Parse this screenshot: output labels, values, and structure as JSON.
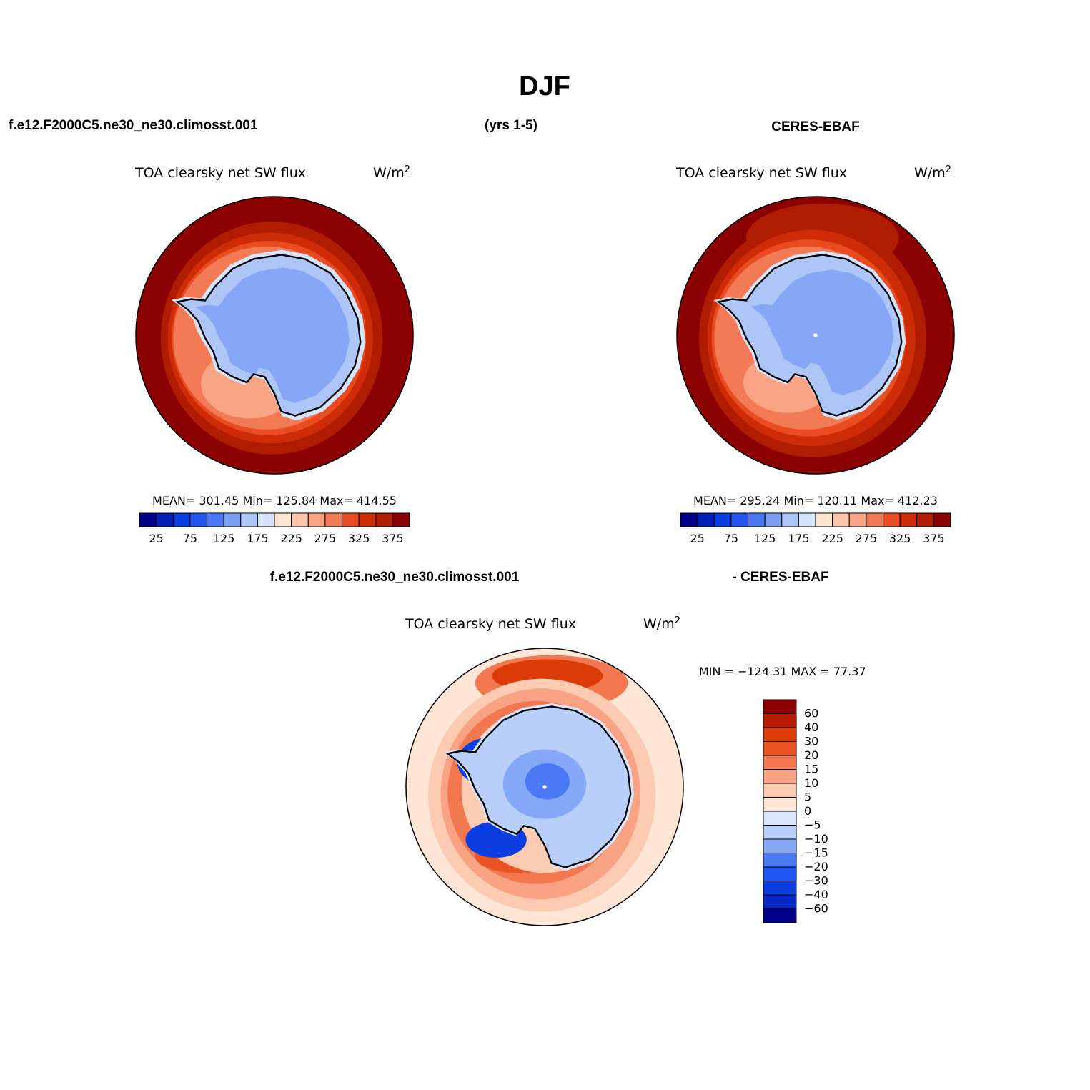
{
  "figure": {
    "title": "DJF",
    "top_left_label": "f.e12.F2000C5.ne30_ne30.climosst.001",
    "top_middle_label": "(yrs 1-5)",
    "top_right_label": "CERES-EBAF",
    "bottom_left_label": "f.e12.F2000C5.ne30_ne30.climosst.001",
    "bottom_right_label": "- CERES-EBAF"
  },
  "colors": {
    "seq": [
      "#00008b",
      "#0020b8",
      "#0a3ee0",
      "#2455f0",
      "#4a78f5",
      "#7a9ff5",
      "#adc6f7",
      "#d5e4fb",
      "#ffe4d0",
      "#fcc5ac",
      "#f9a485",
      "#f27b56",
      "#e84c20",
      "#ce2c06",
      "#b01c00",
      "#8b0000"
    ],
    "diff": [
      "#00008b",
      "#0a27c8",
      "#0a3ee0",
      "#1f55f2",
      "#4b78f5",
      "#86a8f8",
      "#b8cff9",
      "#d9e7fc",
      "#ffe6d6",
      "#fdcbb2",
      "#f9a384",
      "#f3784f",
      "#ea5423",
      "#db3c08",
      "#b81c00",
      "#8b0000"
    ],
    "ocean_high": "#8b0000",
    "continent_interior": "#86a6f6",
    "coast_line": "#000000"
  },
  "chart_data": [
    {
      "type": "heatmap",
      "projection": "south-polar-stereographic",
      "panel": "model",
      "title": "TOA clearsky net SW flux",
      "units_prefix": "W/m",
      "units_sup": "2",
      "stats": "MEAN=  301.45   Min=  125.84   Max=  414.55",
      "mean": 301.45,
      "min": 125.84,
      "max": 414.55,
      "colorbar": {
        "levels": [
          25,
          50,
          75,
          100,
          125,
          150,
          175,
          200,
          225,
          250,
          275,
          300,
          325,
          350,
          375
        ],
        "tick_labels": [
          "25",
          "75",
          "125",
          "175",
          "225",
          "275",
          "325",
          "375"
        ]
      }
    },
    {
      "type": "heatmap",
      "projection": "south-polar-stereographic",
      "panel": "observations",
      "title": "TOA clearsky net SW flux",
      "units_prefix": "W/m",
      "units_sup": "2",
      "stats": "MEAN=  295.24   Min=  120.11   Max=  412.23",
      "mean": 295.24,
      "min": 120.11,
      "max": 412.23,
      "colorbar": {
        "levels": [
          25,
          50,
          75,
          100,
          125,
          150,
          175,
          200,
          225,
          250,
          275,
          300,
          325,
          350,
          375
        ],
        "tick_labels": [
          "25",
          "75",
          "125",
          "175",
          "225",
          "275",
          "325",
          "375"
        ]
      }
    },
    {
      "type": "heatmap",
      "projection": "south-polar-stereographic",
      "panel": "difference",
      "title": "TOA clearsky net SW flux",
      "units_prefix": "W/m",
      "units_sup": "2",
      "stats": "MIN = −124.31  MAX =   77.37",
      "min": -124.31,
      "max": 77.37,
      "colorbar": {
        "levels": [
          60,
          40,
          30,
          20,
          15,
          10,
          5,
          0,
          -5,
          -10,
          -15,
          -20,
          -30,
          -40,
          -60
        ],
        "tick_labels": [
          "60",
          "40",
          "30",
          "20",
          "15",
          "10",
          "5",
          "0",
          "−5",
          "−10",
          "−15",
          "−20",
          "−30",
          "−40",
          "−60"
        ]
      }
    }
  ]
}
